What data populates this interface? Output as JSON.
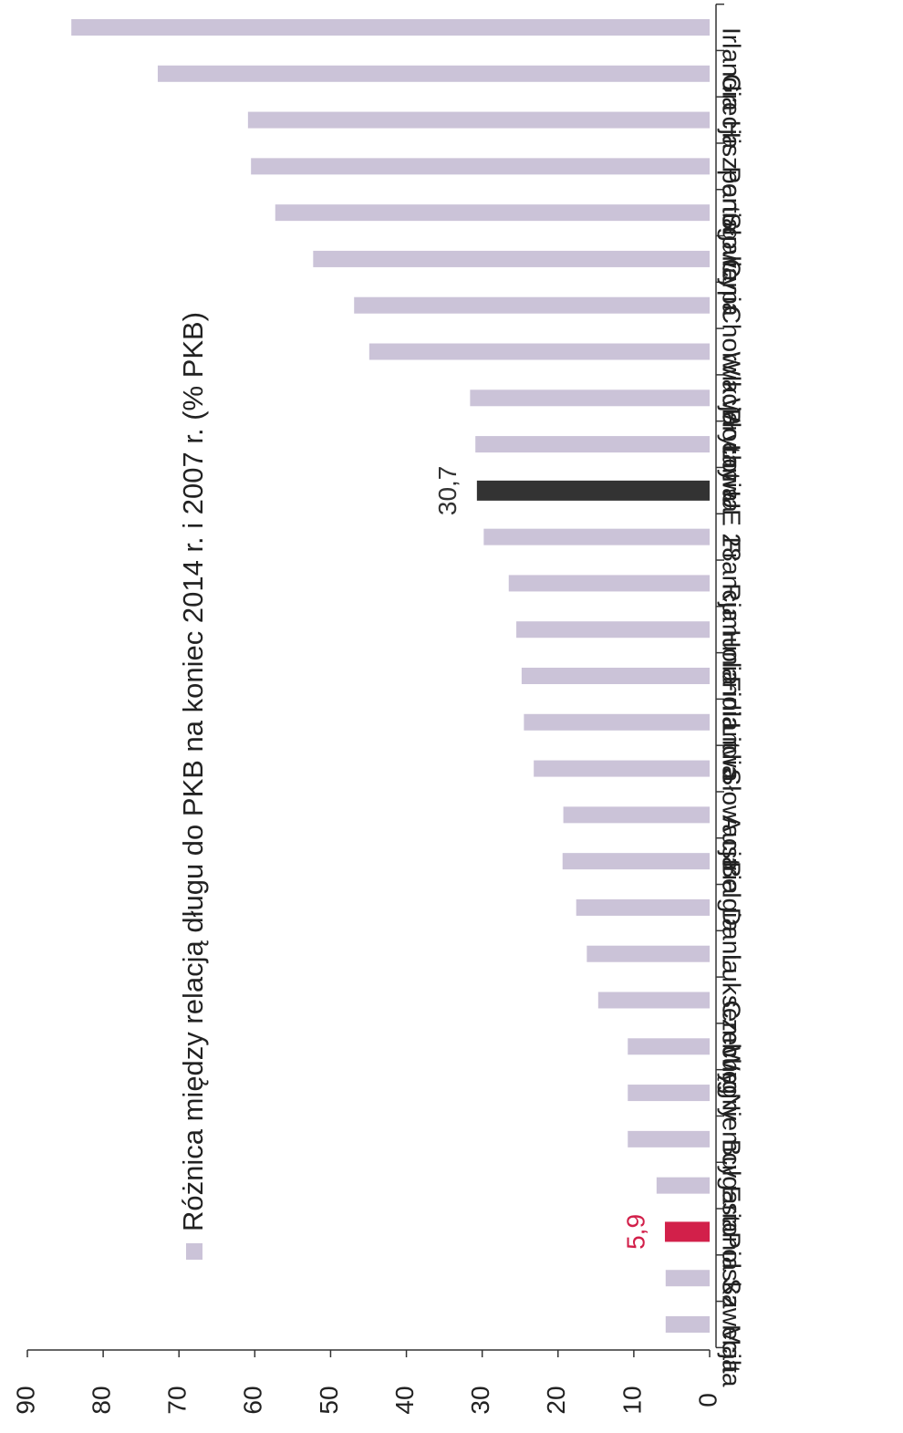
{
  "chart_data": {
    "type": "bar",
    "categories": [
      "Malta",
      "Szwecja",
      "Polska",
      "Estonia",
      "Bułgaria",
      "Niemcy",
      "Węgry",
      "Czechy",
      "Luksemburg",
      "Dania",
      "Belgia",
      "Austria",
      "Słowacja",
      "Litwa",
      "Finlandia",
      "Holandia",
      "Rumunia",
      "Francja",
      "UE 28",
      "Łotwa",
      "Włochy",
      "Wlk. Brytania",
      "Chorwacja",
      "Cypr",
      "Słowenia",
      "Portugalia",
      "Hiszpania",
      "Grecja",
      "Irlandia"
    ],
    "series": [
      {
        "name": "Różnica między relacją długu do PKB na koniec 2014 r. i 2007 r. (% PKB)",
        "color": "#cbc3d8",
        "values": [
          5.8,
          5.8,
          5.9,
          7.0,
          10.8,
          10.8,
          10.8,
          14.7,
          16.2,
          17.6,
          19.4,
          19.3,
          23.2,
          24.5,
          24.8,
          25.5,
          26.5,
          29.8,
          30.7,
          30.9,
          31.6,
          44.9,
          46.9,
          52.3,
          57.3,
          60.5,
          60.9,
          72.8,
          84.2
        ],
        "value_labels": [
          null,
          null,
          "5,9",
          null,
          null,
          null,
          null,
          null,
          null,
          null,
          null,
          null,
          null,
          null,
          null,
          null,
          null,
          null,
          "30,7",
          null,
          null,
          null,
          null,
          null,
          null,
          null,
          null,
          null,
          null
        ],
        "point_colors": {
          "2": "#d2204a",
          "18": "#333333"
        },
        "label_colors": {
          "2": "#d2204a",
          "18": "#333333"
        }
      }
    ],
    "ylim": [
      0,
      90
    ],
    "yticks": [
      0,
      10,
      20,
      30,
      40,
      50,
      60,
      70,
      80,
      90
    ],
    "grid": false
  }
}
